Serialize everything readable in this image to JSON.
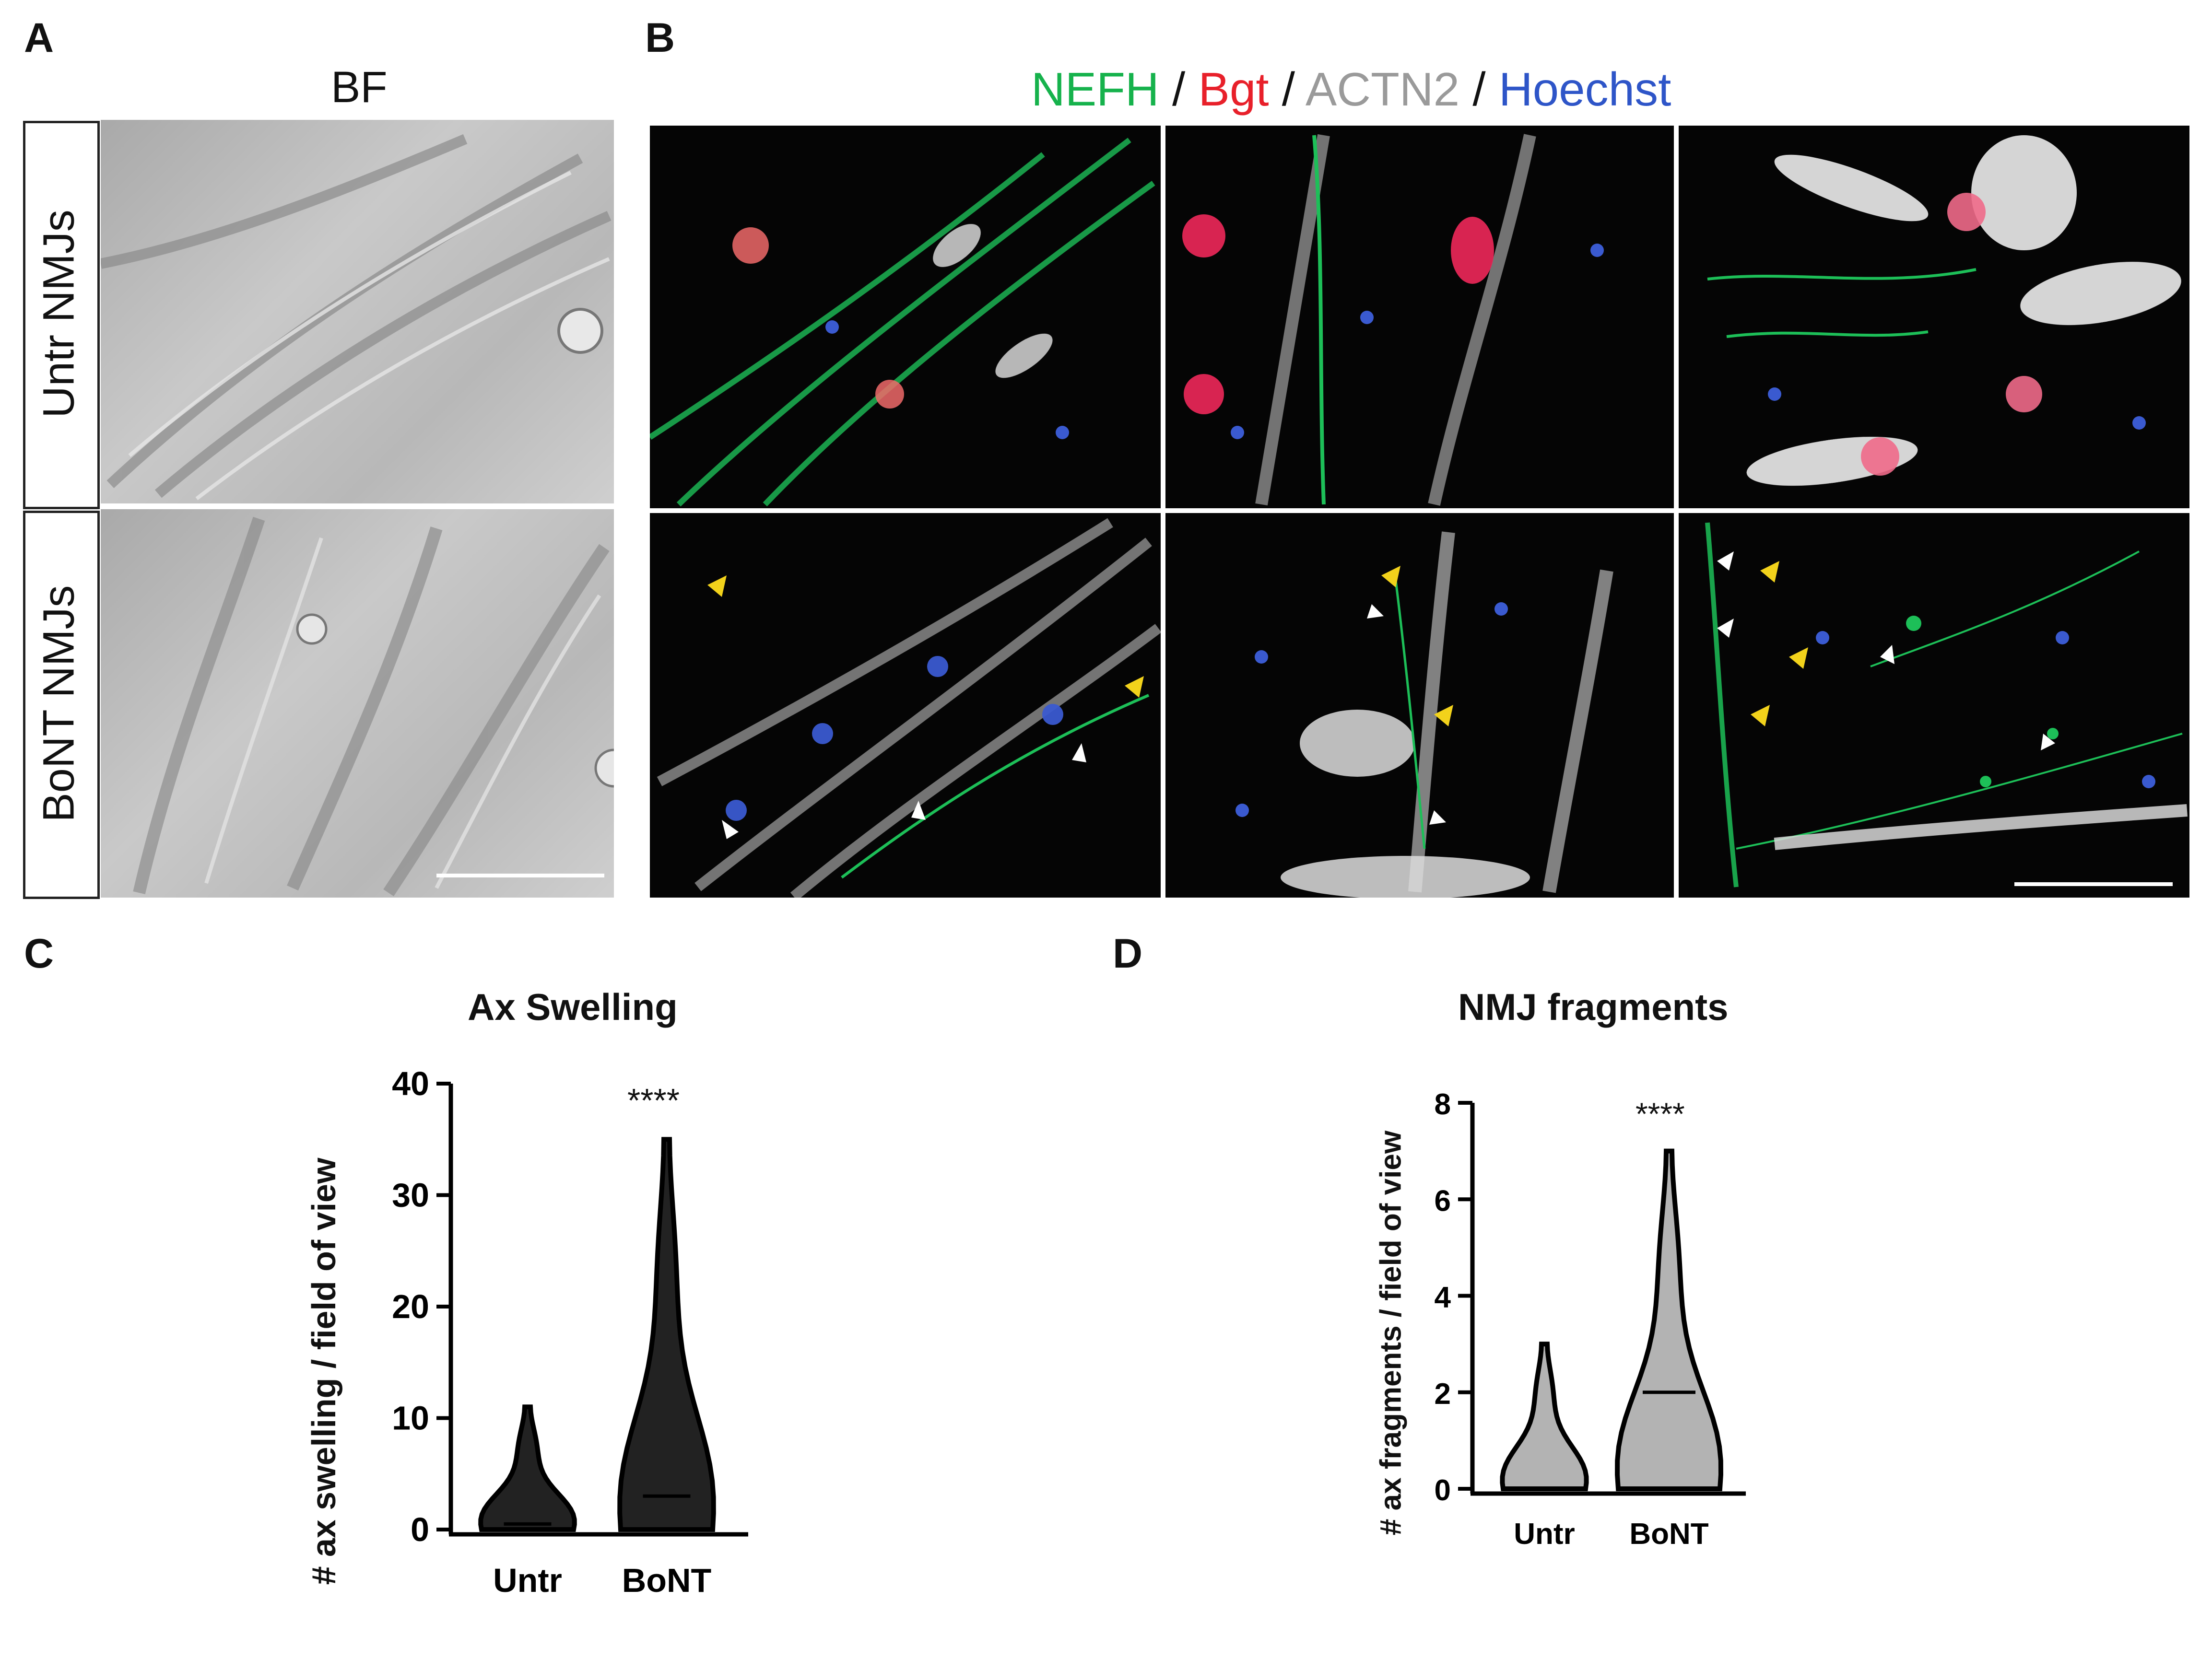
{
  "panels": {
    "a": {
      "label": "A",
      "title": "BF",
      "rows": [
        "Untr NMJs",
        "BoNT NMJs"
      ]
    },
    "b": {
      "label": "B",
      "channels": [
        {
          "text": "NEFH",
          "color": "#16b24c"
        },
        {
          "text": " / ",
          "color": "#111111"
        },
        {
          "text": "Bgt",
          "color": "#e8202a"
        },
        {
          "text": " / ",
          "color": "#111111"
        },
        {
          "text": "ACTN2",
          "color": "#9a9a9a"
        },
        {
          "text": " / ",
          "color": "#111111"
        },
        {
          "text": "Hoechst",
          "color": "#2e55c8"
        }
      ]
    },
    "c": {
      "label": "C"
    },
    "d": {
      "label": "D"
    }
  },
  "chart_data": [
    {
      "type": "violin",
      "title": "Ax Swelling",
      "ylabel": "# ax swelling / field of view",
      "categories": [
        "Untr",
        "BoNT"
      ],
      "ylim": [
        0,
        40
      ],
      "yticks": [
        0,
        10,
        20,
        30,
        40
      ],
      "max": [
        11,
        35
      ],
      "median": [
        0.5,
        3
      ],
      "significance": "****"
    },
    {
      "type": "violin",
      "title": "NMJ fragments",
      "ylabel": "# ax fragments / field of view",
      "categories": [
        "Untr",
        "BoNT"
      ],
      "ylim": [
        0,
        8
      ],
      "yticks": [
        0,
        2,
        4,
        6,
        8
      ],
      "max": [
        3,
        7
      ],
      "median": [
        0,
        2
      ],
      "significance": "****"
    }
  ]
}
